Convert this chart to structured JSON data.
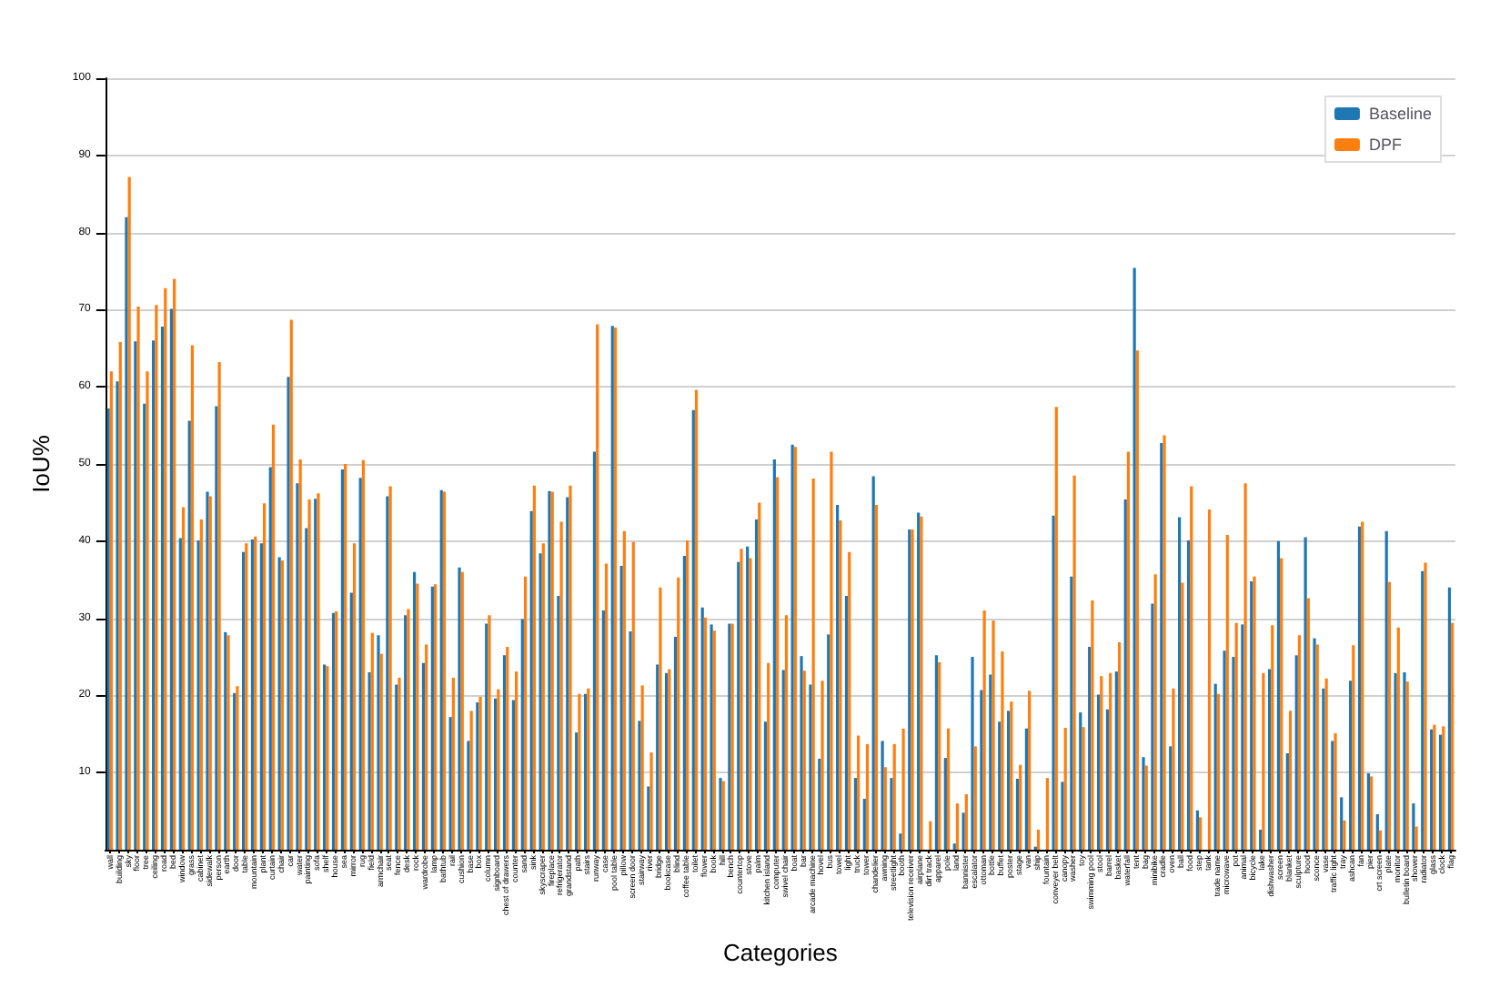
{
  "chart_data": {
    "type": "bar",
    "xlabel": "Categories",
    "ylabel": "IoU%",
    "legend": "top right",
    "grid": "y",
    "ylim": [
      0,
      100
    ],
    "yticks": [
      10,
      20,
      30,
      40,
      50,
      60,
      70,
      80,
      90,
      100
    ],
    "categories": [
      "wall",
      "building",
      "sky",
      "floor",
      "tree",
      "ceiling",
      "road",
      "bed",
      "window",
      "grass",
      "cabinet",
      "sidewalk",
      "person",
      "earth",
      "door",
      "table",
      "mountain",
      "plant",
      "curtain",
      "chair",
      "car",
      "water",
      "painting",
      "sofa",
      "shelf",
      "house",
      "sea",
      "mirror",
      "rug",
      "field",
      "armchair",
      "seat",
      "fence",
      "desk",
      "rock",
      "wardrobe",
      "lamp",
      "bathtub",
      "rail",
      "cushion",
      "base",
      "box",
      "column",
      "signboard",
      "chest of drawers",
      "counter",
      "sand",
      "sink",
      "skyscraper",
      "fireplace",
      "refrigerator",
      "grandstand",
      "path",
      "stairs",
      "runway",
      "case",
      "pool table",
      "pillow",
      "screen door",
      "stairway",
      "river",
      "bridge",
      "bookcase",
      "blind",
      "coffee table",
      "toilet",
      "flower",
      "book",
      "hill",
      "bench",
      "countertop",
      "stove",
      "palm",
      "kitchen island",
      "computer",
      "swivel chair",
      "boat",
      "bar",
      "arcade machine",
      "hovel",
      "bus",
      "towel",
      "light",
      "truck",
      "tower",
      "chandelier",
      "awning",
      "streetlight",
      "booth",
      "television receiver",
      "airplane",
      "dirt track",
      "apparel",
      "pole",
      "land",
      "bannister",
      "escalator",
      "ottoman",
      "bottle",
      "buffet",
      "poster",
      "stage",
      "van",
      "ship",
      "fountain",
      "conveyer belt",
      "canopy",
      "washer",
      "toy",
      "swimming pool",
      "stool",
      "barrel",
      "basket",
      "waterfall",
      "tent",
      "bag",
      "minibike",
      "cradle",
      "oven",
      "ball",
      "food",
      "step",
      "tank",
      "trade name",
      "microwave",
      "pot",
      "animal",
      "bicycle",
      "lake",
      "dishwasher",
      "screen",
      "blanket",
      "sculpture",
      "hood",
      "sconce",
      "vase",
      "traffic light",
      "tray",
      "ashcan",
      "fan",
      "pier",
      "crt screen",
      "plate",
      "monitor",
      "bulletin board",
      "shower",
      "radiator",
      "glass",
      "clock",
      "flag"
    ],
    "series": [
      {
        "name": "Baseline",
        "color": "#1f77b4",
        "values": [
          57.2,
          60.7,
          82.0,
          65.9,
          57.8,
          66.0,
          67.8,
          70.1,
          40.4,
          55.6,
          40.1,
          46.4,
          57.5,
          28.2,
          20.3,
          38.6,
          40.2,
          39.7,
          49.6,
          37.9,
          61.3,
          47.5,
          41.7,
          45.5,
          24.0,
          30.7,
          49.3,
          33.3,
          48.2,
          23.0,
          27.8,
          45.8,
          21.4,
          30.4,
          36.0,
          24.2,
          34.1,
          46.6,
          17.2,
          36.6,
          14.1,
          19.1,
          29.3,
          19.6,
          25.2,
          19.4,
          29.9,
          43.9,
          38.4,
          46.5,
          32.9,
          45.7,
          15.2,
          20.2,
          51.6,
          31.0,
          67.9,
          36.8,
          28.3,
          16.7,
          8.2,
          24.0,
          22.9,
          27.6,
          38.1,
          57.0,
          31.4,
          29.2,
          9.3,
          29.3,
          37.3,
          39.3,
          42.8,
          16.6,
          50.6,
          23.3,
          52.5,
          25.1,
          21.4,
          11.8,
          27.9,
          44.7,
          32.9,
          9.3,
          6.6,
          48.4,
          14.1,
          9.3,
          2.1,
          41.5,
          43.7,
          0,
          25.2,
          11.9,
          0.8,
          4.8,
          25.0,
          20.7,
          22.7,
          16.6,
          18.0,
          9.2,
          15.7,
          0.4,
          0,
          43.3,
          8.8,
          35.4,
          17.8,
          26.3,
          20.1,
          18.2,
          23.1,
          45.4,
          75.4,
          12.0,
          31.9,
          52.7,
          13.4,
          43.1,
          40.1,
          5.1,
          0,
          21.5,
          25.8,
          25.0,
          29.2,
          34.8,
          2.6,
          23.4,
          40.0,
          12.5,
          25.2,
          40.5,
          27.4,
          20.9,
          14.1,
          6.8,
          21.9,
          41.9,
          9.9,
          4.6,
          41.3,
          22.9,
          23.0,
          6.0,
          36.1,
          15.6,
          14.9,
          34.0
        ]
      },
      {
        "name": "DPF",
        "color": "#ff7f0e",
        "values": [
          62.0,
          65.8,
          87.2,
          70.4,
          62.0,
          70.6,
          72.8,
          74.0,
          44.4,
          65.4,
          42.8,
          45.8,
          63.2,
          27.8,
          21.2,
          39.7,
          40.6,
          44.9,
          55.1,
          37.5,
          68.7,
          50.6,
          45.4,
          46.2,
          23.8,
          30.9,
          50.0,
          39.7,
          50.5,
          28.1,
          25.4,
          47.1,
          22.3,
          31.2,
          34.5,
          26.6,
          34.4,
          46.4,
          22.3,
          36.0,
          18.0,
          19.8,
          30.4,
          20.8,
          26.3,
          23.1,
          35.4,
          47.2,
          39.7,
          46.4,
          42.5,
          47.2,
          20.2,
          20.9,
          68.1,
          37.1,
          67.7,
          41.3,
          39.9,
          21.3,
          12.6,
          34.0,
          23.4,
          35.3,
          40.1,
          59.6,
          30.1,
          28.4,
          8.9,
          29.3,
          39.0,
          37.8,
          45.0,
          24.2,
          48.3,
          30.4,
          52.2,
          23.2,
          48.1,
          21.9,
          51.6,
          42.7,
          38.6,
          14.8,
          13.7,
          44.7,
          10.7,
          13.7,
          15.7,
          41.5,
          43.2,
          3.7,
          24.3,
          15.7,
          6.0,
          7.2,
          13.4,
          31.0,
          29.7,
          25.7,
          19.2,
          11.0,
          20.6,
          2.6,
          9.3,
          57.4,
          15.8,
          48.5,
          15.9,
          32.3,
          22.5,
          22.9,
          26.9,
          51.6,
          64.7,
          10.9,
          35.7,
          53.7,
          20.9,
          34.6,
          47.1,
          4.2,
          44.1,
          20.2,
          40.8,
          29.4,
          47.5,
          35.4,
          22.9,
          29.1,
          37.8,
          18.0,
          27.8,
          32.6,
          26.6,
          22.2,
          15.1,
          3.8,
          26.5,
          42.5,
          9.5,
          2.5,
          34.7,
          28.8,
          21.8,
          3.0,
          37.2,
          16.2,
          16.0,
          29.4
        ]
      }
    ]
  }
}
